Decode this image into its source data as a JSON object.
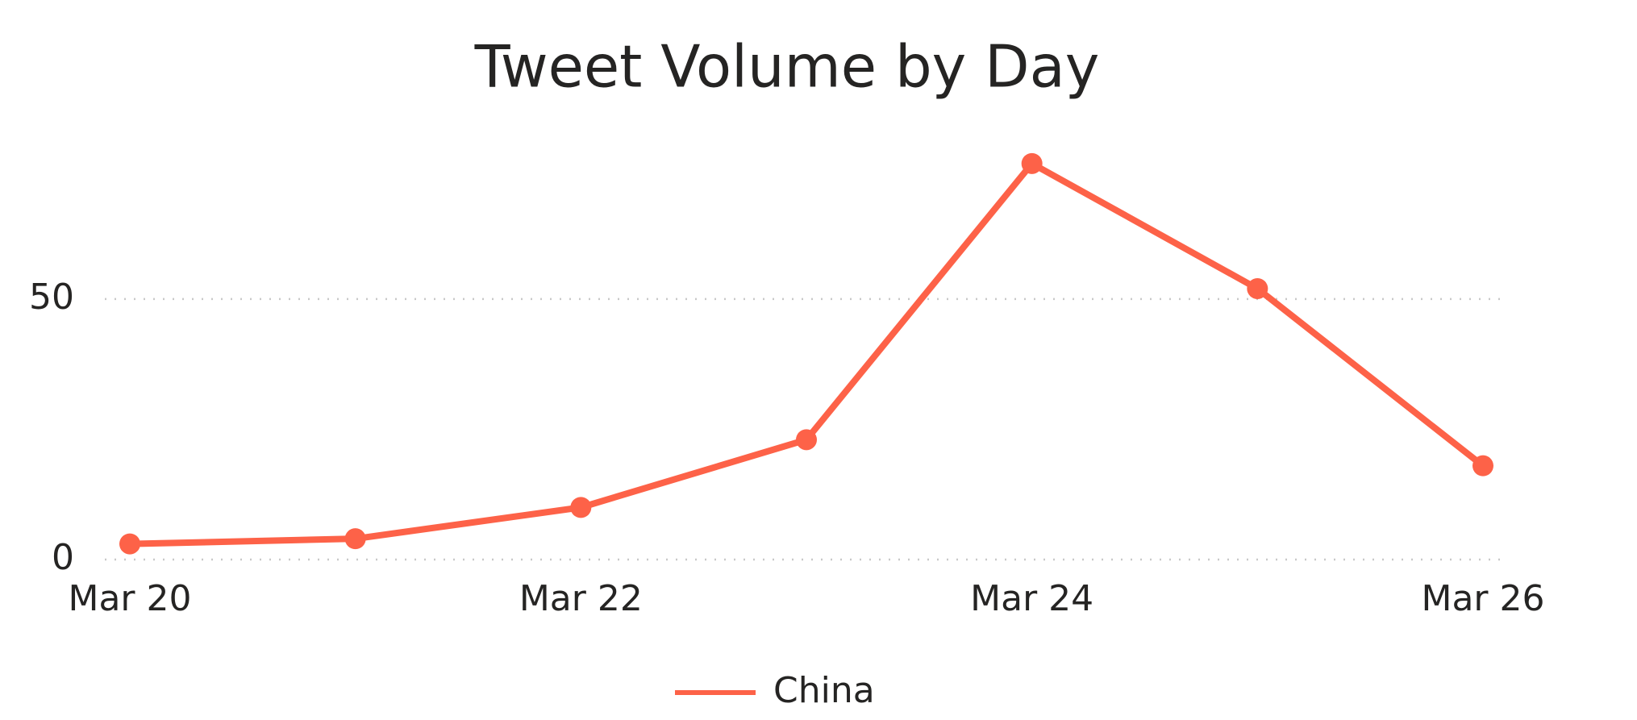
{
  "chart_data": {
    "type": "line",
    "title": "Tweet Volume by Day",
    "categories": [
      "Mar 20",
      null,
      "Mar 22",
      null,
      "Mar 24",
      null,
      "Mar 26"
    ],
    "series": [
      {
        "name": "China",
        "color": "#fd6248",
        "values": [
          3,
          4,
          10,
          23,
          76,
          52,
          18
        ]
      }
    ],
    "ylim": [
      0,
      80
    ],
    "yticks": [
      0,
      50
    ],
    "grid": true,
    "legend": "bottom"
  }
}
